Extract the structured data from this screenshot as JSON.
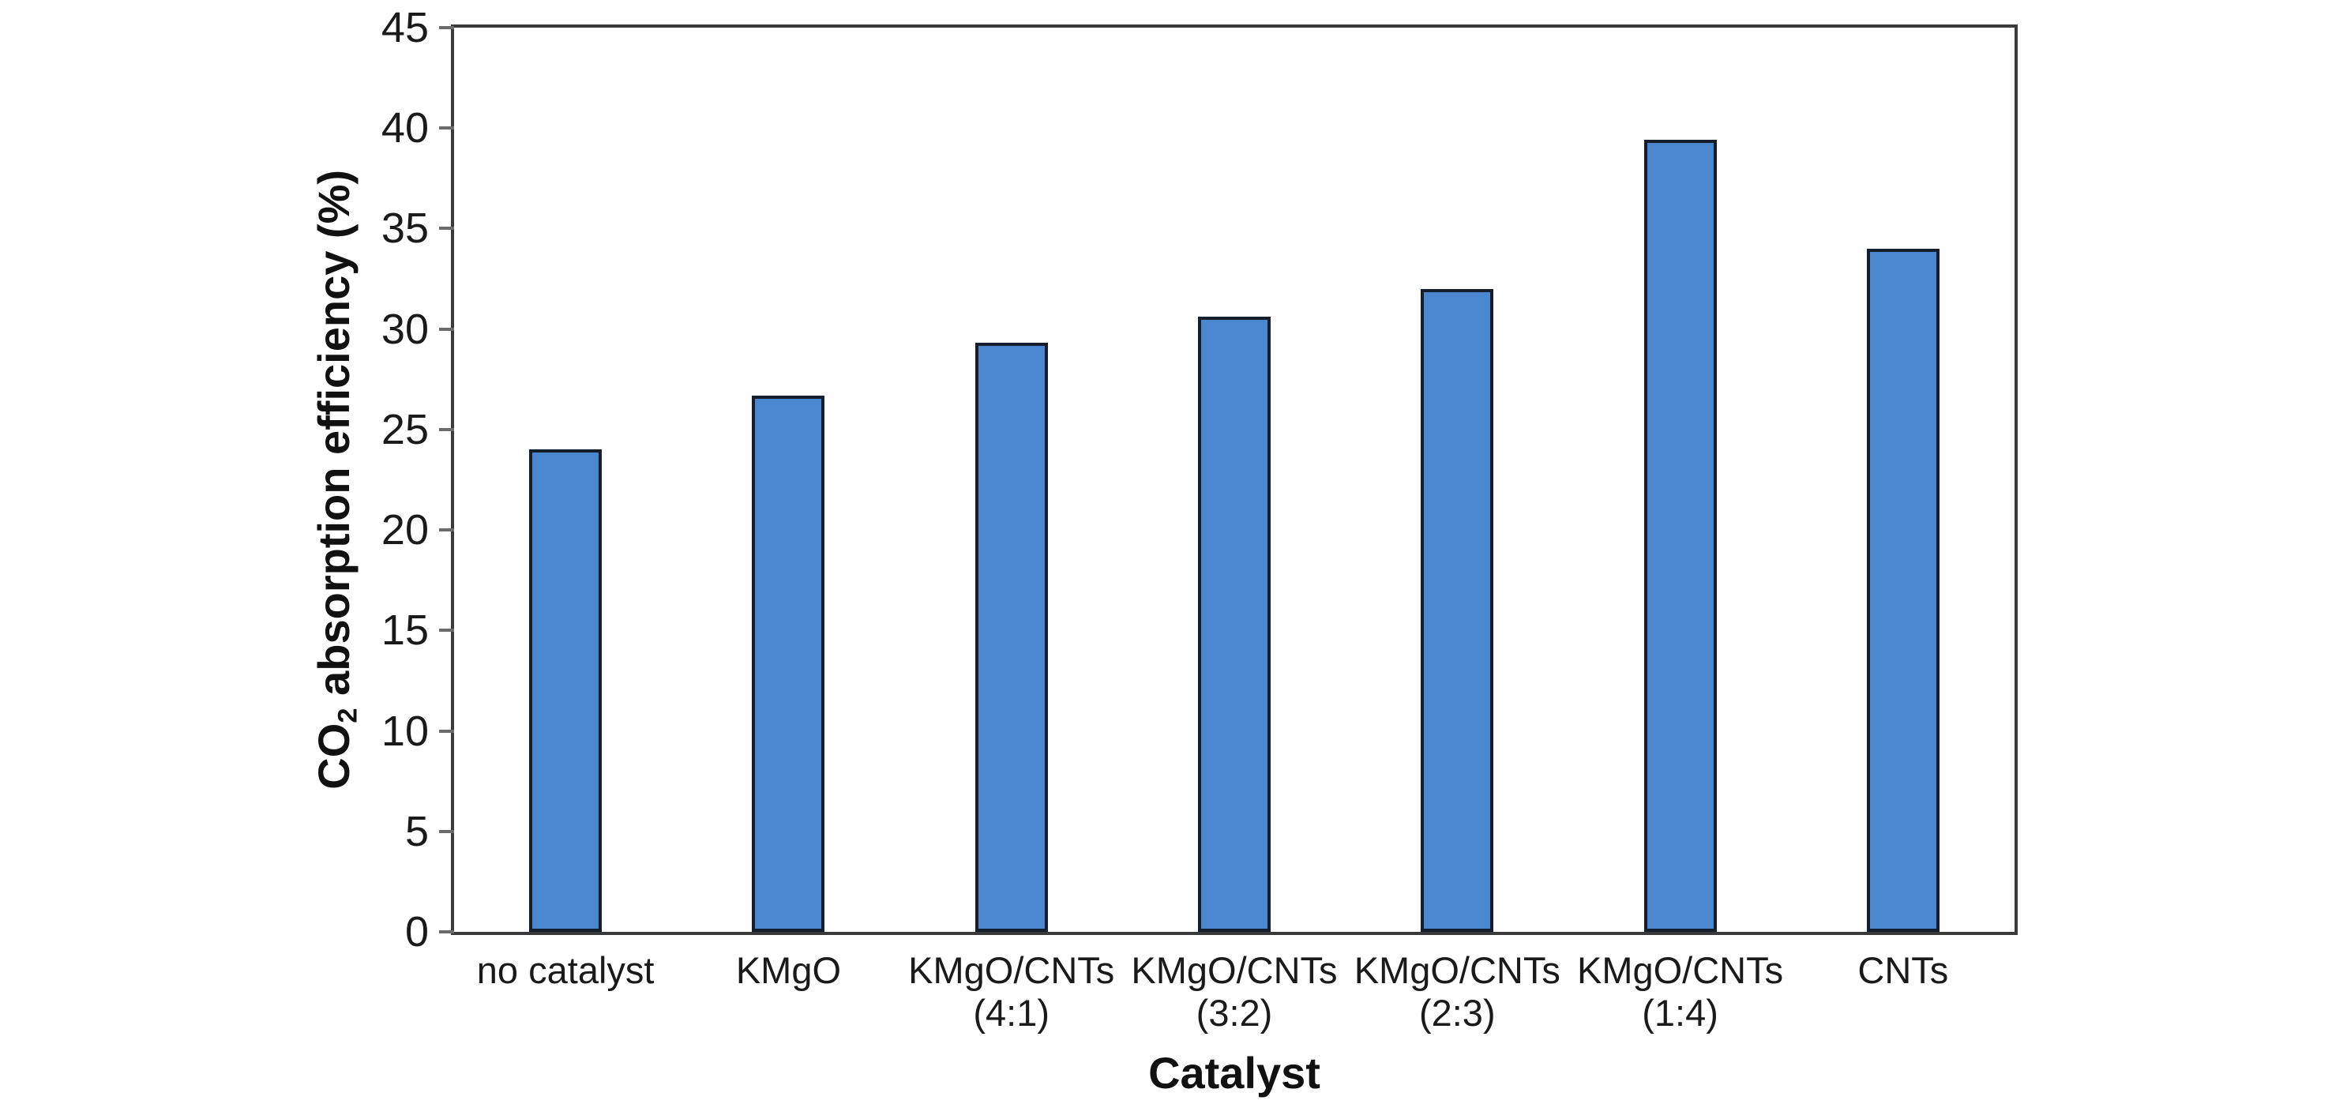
{
  "chart_data": {
    "type": "bar",
    "title": "",
    "xlabel": "Catalyst",
    "ylabel_plain": "CO2 absorption efficiency (%)",
    "ylabel_pre": "CO",
    "ylabel_sub": "2",
    "ylabel_post": " absorption efficiency (%)",
    "categories": [
      {
        "line1": "no catalyst",
        "line2": ""
      },
      {
        "line1": "KMgO",
        "line2": ""
      },
      {
        "line1": "KMgO/CNTs",
        "line2": "(4:1)"
      },
      {
        "line1": "KMgO/CNTs",
        "line2": "(3:2)"
      },
      {
        "line1": "KMgO/CNTs",
        "line2": "(2:3)"
      },
      {
        "line1": "KMgO/CNTs",
        "line2": "(1:4)"
      },
      {
        "line1": "CNTs",
        "line2": ""
      }
    ],
    "values": [
      24.0,
      26.7,
      29.3,
      30.6,
      32.0,
      39.4,
      34.0
    ],
    "ylim": [
      0,
      45
    ],
    "yticks": [
      0,
      5,
      10,
      15,
      20,
      25,
      30,
      35,
      40,
      45
    ],
    "grid": false,
    "legend": false,
    "colors": {
      "bar_fill": "#4a87ce",
      "bar_edge": "#161d2b",
      "axis_frame": "#3a3a3a",
      "tick": "#6b6b6b",
      "text": "#1a1a1a",
      "background": "#ffffff"
    }
  }
}
